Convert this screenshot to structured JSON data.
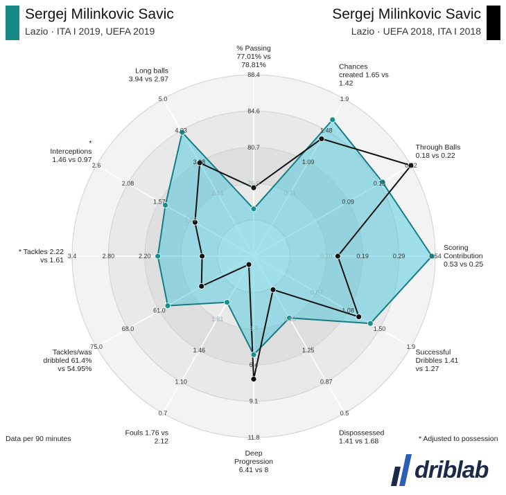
{
  "header": {
    "left": {
      "name": "Sergej Milinkovic Savic",
      "subtitle": "Lazio · ITA I 2019, UEFA 2019",
      "color": "#158a87"
    },
    "right": {
      "name": "Sergej Milinkovic Savic",
      "subtitle": "Lazio · UEFA 2018, ITA I 2018",
      "color": "#000000"
    }
  },
  "notes": {
    "per90": "Data per 90 minutes",
    "adjusted": "* Adjusted to possession"
  },
  "brand": {
    "name": "driblab"
  },
  "chart_data": {
    "type": "radar",
    "series": [
      {
        "name": "Lazio · ITA I 2019, UEFA 2019",
        "color": "#1aaeb8",
        "fill": "#2ec4dc",
        "values": [
          77.01,
          1.65,
          0.18,
          0.53,
          1.41,
          1.41,
          6.41,
          1.76,
          61.4,
          2.22,
          1.46,
          3.94
        ]
      },
      {
        "name": "Lazio · UEFA 2018, ITA I 2018",
        "color": "#111111",
        "fill": "none",
        "values": [
          78.81,
          1.42,
          0.22,
          0.25,
          1.27,
          1.68,
          8,
          2.12,
          54.95,
          1.61,
          0.97,
          2.97
        ]
      }
    ],
    "axes": [
      {
        "label": [
          "% Passing",
          "77.01% vs",
          "78.81%"
        ],
        "min": 73.0,
        "max": 88.4,
        "inverted": false,
        "ticks": [
          "88.4",
          "84.6",
          "80.7",
          "76.9"
        ]
      },
      {
        "label": [
          "Chances",
          "created 1.65 vs",
          "1.42"
        ],
        "min": 0.0,
        "max": 1.9,
        "inverted": false,
        "ticks": [
          "1.9",
          "1.48",
          "1.09",
          "0.71"
        ]
      },
      {
        "label": [
          "Through Balls",
          "0.18 vs 0.22"
        ],
        "min": 0.0,
        "max": 0.22,
        "inverted": false,
        "ticks": [
          "0.22",
          "0.13",
          "0.09"
        ]
      },
      {
        "label": [
          "Scoring",
          "Contribution",
          "0.53 vs 0.25"
        ],
        "min": 0.0,
        "max": 0.54,
        "inverted": false,
        "ticks": [
          "0.54",
          "0.29",
          "0.19",
          "0.10"
        ]
      },
      {
        "label": [
          "Successful",
          "Dribbles 1.41",
          "vs 1.27"
        ],
        "min": 0.0,
        "max": 1.9,
        "inverted": false,
        "ticks": [
          "1.9",
          "1.50",
          "1.08",
          "0.67"
        ]
      },
      {
        "label": [
          "Dispossessed",
          "1.41 vs 1.68"
        ],
        "min": 2.0,
        "max": 0.5,
        "inverted": true,
        "ticks": [
          "0.5",
          "0.87",
          "1.25",
          "1.63"
        ]
      },
      {
        "label": [
          "Deep",
          "Progression",
          "6.41 vs 8"
        ],
        "min": 0.0,
        "max": 11.8,
        "inverted": false,
        "ticks": [
          "11.8",
          "9.1",
          "6.4",
          "3.7"
        ]
      },
      {
        "label": [
          "Fouls 1.76 vs",
          "2.12"
        ],
        "min": 2.2,
        "max": 0.7,
        "inverted": true,
        "ticks": [
          "0.7",
          "1.10",
          "1.46",
          "1.81"
        ]
      },
      {
        "label": [
          "Tackles/was",
          "dribbled 61.4%",
          "vs 54.95%"
        ],
        "min": 45.0,
        "max": 75.0,
        "inverted": false,
        "ticks": [
          "75.0",
          "68.0",
          "61.0"
        ]
      },
      {
        "label": [
          "* Tackles 2.22",
          "vs 1.61"
        ],
        "min": 0.9,
        "max": 3.4,
        "inverted": false,
        "ticks": [
          "3.4",
          "2.80",
          "2.20"
        ]
      },
      {
        "label": [
          "*",
          "Interceptions",
          "1.46 vs 0.97"
        ],
        "min": 0.0,
        "max": 2.6,
        "inverted": false,
        "ticks": [
          "2.6",
          "2.08",
          "1.57",
          "1.07"
        ]
      },
      {
        "label": [
          "Long balls",
          "3.94 vs 2.97"
        ],
        "min": 0.0,
        "max": 5.0,
        "inverted": false,
        "ticks": [
          "5.0",
          "4.03",
          "3.08",
          "2.14"
        ]
      }
    ]
  }
}
